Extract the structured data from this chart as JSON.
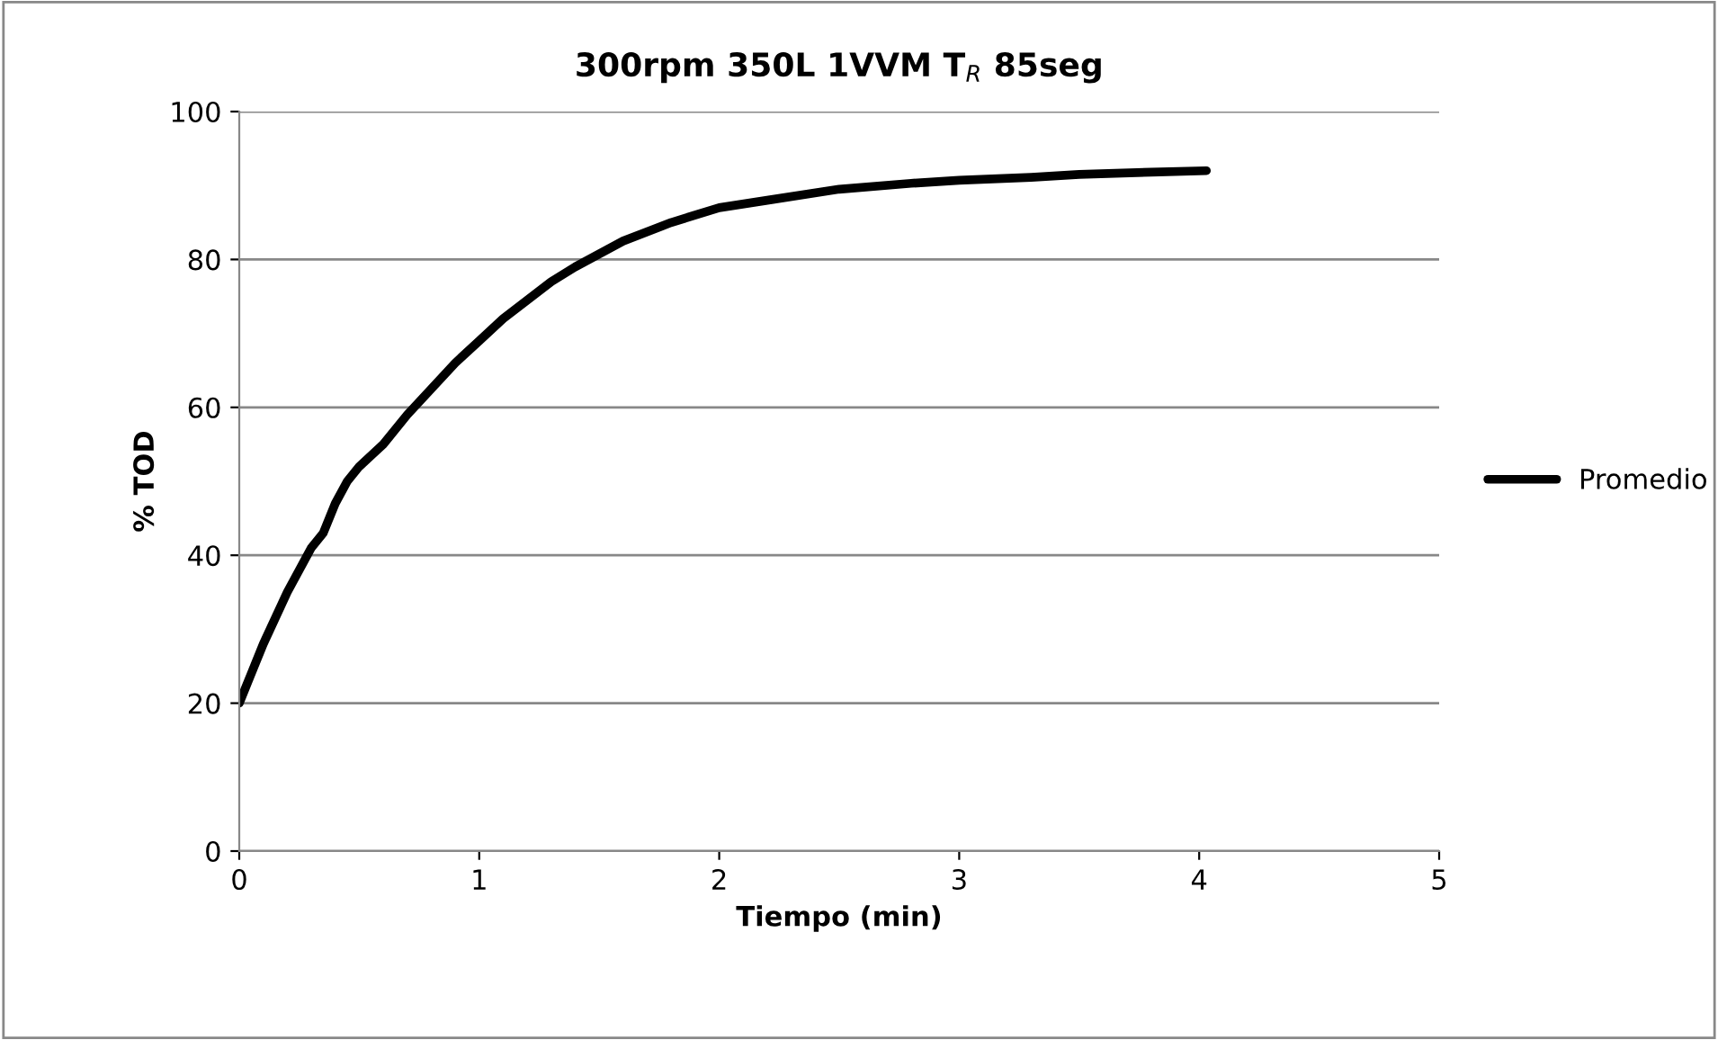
{
  "chart_data": {
    "type": "line",
    "title": "300rpm 350L 1VVM T$_{R}$ 85seg",
    "xlabel": "Tiempo (min)",
    "ylabel": "% TOD",
    "series": [
      {
        "name": "Promedio",
        "color": "#000000",
        "x": [
          0,
          0.05,
          0.1,
          0.2,
          0.3,
          0.35,
          0.4,
          0.45,
          0.5,
          0.6,
          0.7,
          0.8,
          0.9,
          1.0,
          1.1,
          1.2,
          1.3,
          1.4,
          1.6,
          1.8,
          2.0,
          2.2,
          2.5,
          2.8,
          3.0,
          3.3,
          3.5,
          3.8,
          4.03
        ],
        "values": [
          20,
          24,
          28,
          35,
          41,
          43,
          47,
          50,
          52,
          55,
          59,
          62.5,
          66,
          69,
          72,
          74.5,
          77,
          79,
          82.5,
          85,
          87,
          88,
          89.5,
          90.3,
          90.7,
          91.1,
          91.5,
          91.8,
          92
        ]
      }
    ],
    "xlim": [
      0,
      5
    ],
    "xticks": [
      0,
      1,
      2,
      3,
      4,
      5
    ],
    "ylim": [
      0,
      100
    ],
    "yticks": [
      0,
      20,
      40,
      60,
      80,
      100
    ],
    "grid": "y",
    "legend": "right",
    "marker": "none",
    "line_style": "solid"
  }
}
